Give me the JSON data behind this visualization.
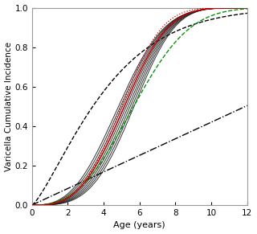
{
  "xlim": [
    0,
    12
  ],
  "ylim": [
    0,
    1.0
  ],
  "xlabel": "Age (years)",
  "ylabel": "Varicella Cumulative Incidence",
  "xticks": [
    0,
    2,
    4,
    6,
    8,
    10,
    12
  ],
  "yticks": [
    0.0,
    0.2,
    0.4,
    0.6,
    0.8,
    1.0
  ],
  "background_color": "#ffffff",
  "main_cluster_color": "#1a1a1a",
  "red_line_color": "#cc0000",
  "green_line_color": "#009900",
  "red_dotted_color": "#cc0000",
  "n_black_lines": 9,
  "cluster_shapes": [
    2.8,
    2.9,
    3.0,
    3.1,
    3.2,
    3.3,
    3.4,
    3.5,
    3.6
  ],
  "cluster_scales": [
    5.5,
    5.6,
    5.7,
    5.8,
    5.9,
    6.0,
    6.1,
    6.2,
    6.3
  ],
  "red_shape": 3.1,
  "red_scale": 5.8,
  "green_shape": 2.7,
  "green_scale": 6.5,
  "red_dot_shape": 3.2,
  "red_dot_scale": 5.6,
  "dashed_shape": 1.3,
  "dashed_scale": 4.5,
  "dashdot_slope": 0.042
}
